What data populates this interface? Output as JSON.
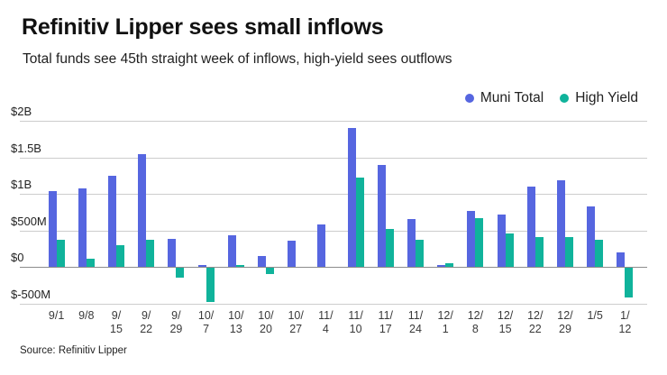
{
  "header": {
    "title": "Refinitiv Lipper sees small inflows",
    "subtitle": "Total funds see 45th straight week of inflows, high-yield sees outflows"
  },
  "source_line": "Source: Refinitiv Lipper",
  "colors": {
    "muni_total": "#5666e0",
    "high_yield": "#10b39b",
    "gridline": "#cdcdcd",
    "zero_line": "#8c8c8c"
  },
  "legend": {
    "items": [
      {
        "label": "Muni Total",
        "color": "#5666e0"
      },
      {
        "label": "High Yield",
        "color": "#10b39b"
      }
    ]
  },
  "chart_data": {
    "type": "bar",
    "title": "Refinitiv Lipper sees small inflows",
    "subtitle": "Total funds see 45th straight week of inflows, high-yield sees outflows",
    "units": "millions of USD",
    "categories": [
      "9/1",
      "9/8",
      "9/15",
      "9/22",
      "9/29",
      "10/7",
      "10/13",
      "10/20",
      "10/27",
      "11/4",
      "11/10",
      "11/17",
      "11/24",
      "12/1",
      "12/8",
      "12/15",
      "12/22",
      "12/29",
      "1/5",
      "1/12"
    ],
    "category_tick_lines": [
      [
        "9/1"
      ],
      [
        "9/8"
      ],
      [
        "9/",
        "15"
      ],
      [
        "9/",
        "22"
      ],
      [
        "9/",
        "29"
      ],
      [
        "10/",
        "7"
      ],
      [
        "10/",
        "13"
      ],
      [
        "10/",
        "20"
      ],
      [
        "10/",
        "27"
      ],
      [
        "11/",
        "4"
      ],
      [
        "11/",
        "10"
      ],
      [
        "11/",
        "17"
      ],
      [
        "11/",
        "24"
      ],
      [
        "12/",
        "1"
      ],
      [
        "12/",
        "8"
      ],
      [
        "12/",
        "15"
      ],
      [
        "12/",
        "22"
      ],
      [
        "12/",
        "29"
      ],
      [
        "1/5"
      ],
      [
        "1/",
        "12"
      ]
    ],
    "series": [
      {
        "name": "Muni Total",
        "color": "#5666e0",
        "values": [
          1040,
          1080,
          1250,
          1550,
          385,
          30,
          440,
          150,
          365,
          580,
          1900,
          1400,
          660,
          25,
          775,
          720,
          1100,
          1190,
          830,
          200
        ]
      },
      {
        "name": "High Yield",
        "color": "#10b39b",
        "values": [
          370,
          120,
          300,
          380,
          -130,
          -465,
          35,
          -85,
          0,
          0,
          1220,
          520,
          375,
          55,
          665,
          460,
          410,
          415,
          375,
          -400
        ]
      }
    ],
    "y_ticks": [
      {
        "label": "$2B",
        "value": 2000
      },
      {
        "label": "$1.5B",
        "value": 1500
      },
      {
        "label": "$1B",
        "value": 1000
      },
      {
        "label": "$500M",
        "value": 500
      },
      {
        "label": "$0",
        "value": 0
      },
      {
        "label": "$-500M",
        "value": -500
      }
    ],
    "ylim": [
      -500,
      2000
    ],
    "grid": "horizontal",
    "legend_position": "top-right"
  }
}
